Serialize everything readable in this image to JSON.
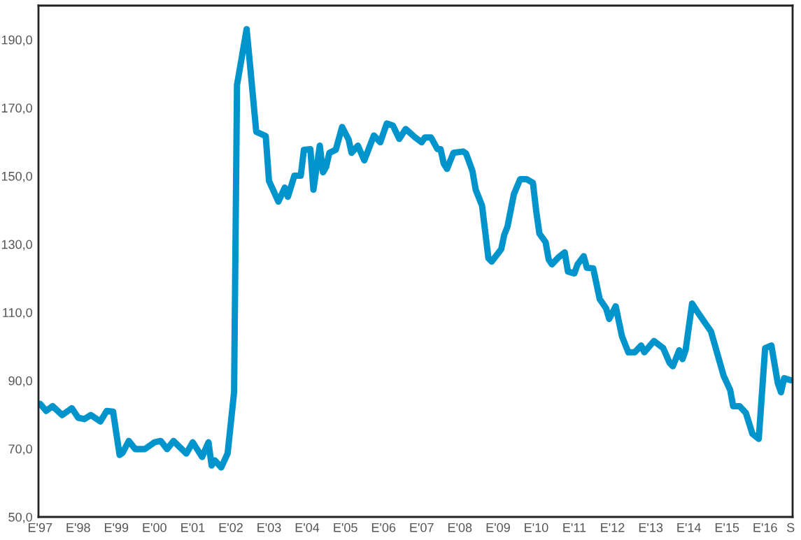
{
  "chart_data": {
    "type": "line",
    "x": [
      "1997-01",
      "1997-03",
      "1997-05",
      "1997-08",
      "1997-11",
      "1998-01",
      "1998-03",
      "1998-05",
      "1998-08",
      "1998-10",
      "1998-12",
      "1999-02",
      "1999-03",
      "1999-05",
      "1999-07",
      "1999-10",
      "2000-01",
      "2000-03",
      "2000-05",
      "2000-07",
      "2000-11",
      "2001-01",
      "2001-04",
      "2001-06",
      "2001-07",
      "2001-08",
      "2001-10",
      "2001-12",
      "2002-02",
      "2002-03",
      "2002-06",
      "2002-07",
      "2002-09",
      "2002-12",
      "2003-01",
      "2003-04",
      "2003-06",
      "2003-07",
      "2003-09",
      "2003-11",
      "2003-12",
      "2004-02",
      "2004-03",
      "2004-05",
      "2004-06",
      "2004-07",
      "2004-08",
      "2004-10",
      "2004-12",
      "2005-02",
      "2005-03",
      "2005-05",
      "2005-07",
      "2005-10",
      "2005-12",
      "2006-02",
      "2006-04",
      "2006-06",
      "2006-08",
      "2006-11",
      "2007-01",
      "2007-02",
      "2007-04",
      "2007-06",
      "2007-07",
      "2007-08",
      "2007-09",
      "2007-11",
      "2008-02",
      "2008-03",
      "2008-05",
      "2008-06",
      "2008-08",
      "2008-10",
      "2008-11",
      "2009-02",
      "2009-03",
      "2009-04",
      "2009-06",
      "2009-08",
      "2009-10",
      "2009-12",
      "2010-01",
      "2010-02",
      "2010-04",
      "2010-05",
      "2010-06",
      "2010-08",
      "2010-10",
      "2010-11",
      "2011-01",
      "2011-02",
      "2011-04",
      "2011-05",
      "2011-07",
      "2011-09",
      "2011-11",
      "2011-12",
      "2012-02",
      "2012-04",
      "2012-06",
      "2012-08",
      "2012-10",
      "2012-11",
      "2013-02",
      "2013-05",
      "2013-07",
      "2013-08",
      "2013-10",
      "2013-11",
      "2013-12",
      "2014-02",
      "2014-04",
      "2014-08",
      "2014-12",
      "2015-02",
      "2015-03",
      "2015-05",
      "2015-07",
      "2015-09",
      "2015-11",
      "2016-01",
      "2016-03",
      "2016-05",
      "2016-06",
      "2016-07",
      "2016-09"
    ],
    "series": [
      {
        "color": "#0094cc",
        "values": [
          83.2,
          81.1,
          82.5,
          79.9,
          81.9,
          79.1,
          78.7,
          79.9,
          78.0,
          81.1,
          80.9,
          68.2,
          68.8,
          72.3,
          69.9,
          69.9,
          71.9,
          72.3,
          69.9,
          72.3,
          68.6,
          71.9,
          67.6,
          71.9,
          65.1,
          66.6,
          64.5,
          68.6,
          86.6,
          176.7,
          193.1,
          183.4,
          163.0,
          161.7,
          148.6,
          142.5,
          146.6,
          143.9,
          150.1,
          150.1,
          157.7,
          157.9,
          146.0,
          158.9,
          151.1,
          152.7,
          156.8,
          157.7,
          164.4,
          160.7,
          156.8,
          158.9,
          154.6,
          161.9,
          159.9,
          165.4,
          164.8,
          160.9,
          163.8,
          161.3,
          159.9,
          161.3,
          161.3,
          157.9,
          157.9,
          153.6,
          152.1,
          156.8,
          157.2,
          156.6,
          151.5,
          146.0,
          141.3,
          125.9,
          124.9,
          128.6,
          132.7,
          135.1,
          144.6,
          149.1,
          149.1,
          148.0,
          139.8,
          133.1,
          130.6,
          125.5,
          124.1,
          126.1,
          127.6,
          122.0,
          121.4,
          124.1,
          126.5,
          123.1,
          122.9,
          113.9,
          111.2,
          108.1,
          111.8,
          103.0,
          98.3,
          98.3,
          100.3,
          98.3,
          101.6,
          99.5,
          95.2,
          94.2,
          98.9,
          96.3,
          98.9,
          112.6,
          109.8,
          104.4,
          91.3,
          87.2,
          82.5,
          82.5,
          80.5,
          74.4,
          72.9,
          99.5,
          100.3,
          89.3,
          86.6,
          90.7,
          90.1
        ]
      }
    ],
    "xlim": [
      "1996-12-17",
      "2016-09-20"
    ],
    "xticks": [
      {
        "value": "1997-01",
        "label": "E'97"
      },
      {
        "value": "1998-01",
        "label": "E'98"
      },
      {
        "value": "1999-01",
        "label": "E'99"
      },
      {
        "value": "2000-01",
        "label": "E'00"
      },
      {
        "value": "2001-01",
        "label": "E'01"
      },
      {
        "value": "2002-01",
        "label": "E'02"
      },
      {
        "value": "2003-01",
        "label": "E'03"
      },
      {
        "value": "2004-01",
        "label": "E'04"
      },
      {
        "value": "2005-01",
        "label": "E'05"
      },
      {
        "value": "2006-01",
        "label": "E'06"
      },
      {
        "value": "2007-01",
        "label": "E'07"
      },
      {
        "value": "2008-01",
        "label": "E'08"
      },
      {
        "value": "2009-01",
        "label": "E'09"
      },
      {
        "value": "2010-01",
        "label": "E'10"
      },
      {
        "value": "2011-01",
        "label": "E'11"
      },
      {
        "value": "2012-01",
        "label": "E'12"
      },
      {
        "value": "2013-01",
        "label": "E'13"
      },
      {
        "value": "2014-01",
        "label": "E'14"
      },
      {
        "value": "2015-01",
        "label": "E'15"
      },
      {
        "value": "2016-01",
        "label": "E'16"
      },
      {
        "value": "2016-09",
        "label": "S"
      }
    ],
    "ylim": [
      50,
      200
    ],
    "yticks": [
      {
        "value": 50,
        "label": "50,0"
      },
      {
        "value": 70,
        "label": "70,0"
      },
      {
        "value": 90,
        "label": "90,0"
      },
      {
        "value": 110,
        "label": "110,0"
      },
      {
        "value": 130,
        "label": "130,0"
      },
      {
        "value": 150,
        "label": "150,0"
      },
      {
        "value": 170,
        "label": "170,0"
      },
      {
        "value": 190,
        "label": "190,0"
      }
    ],
    "grid": false,
    "legend": false,
    "marker": "none",
    "line_style": "solid"
  }
}
